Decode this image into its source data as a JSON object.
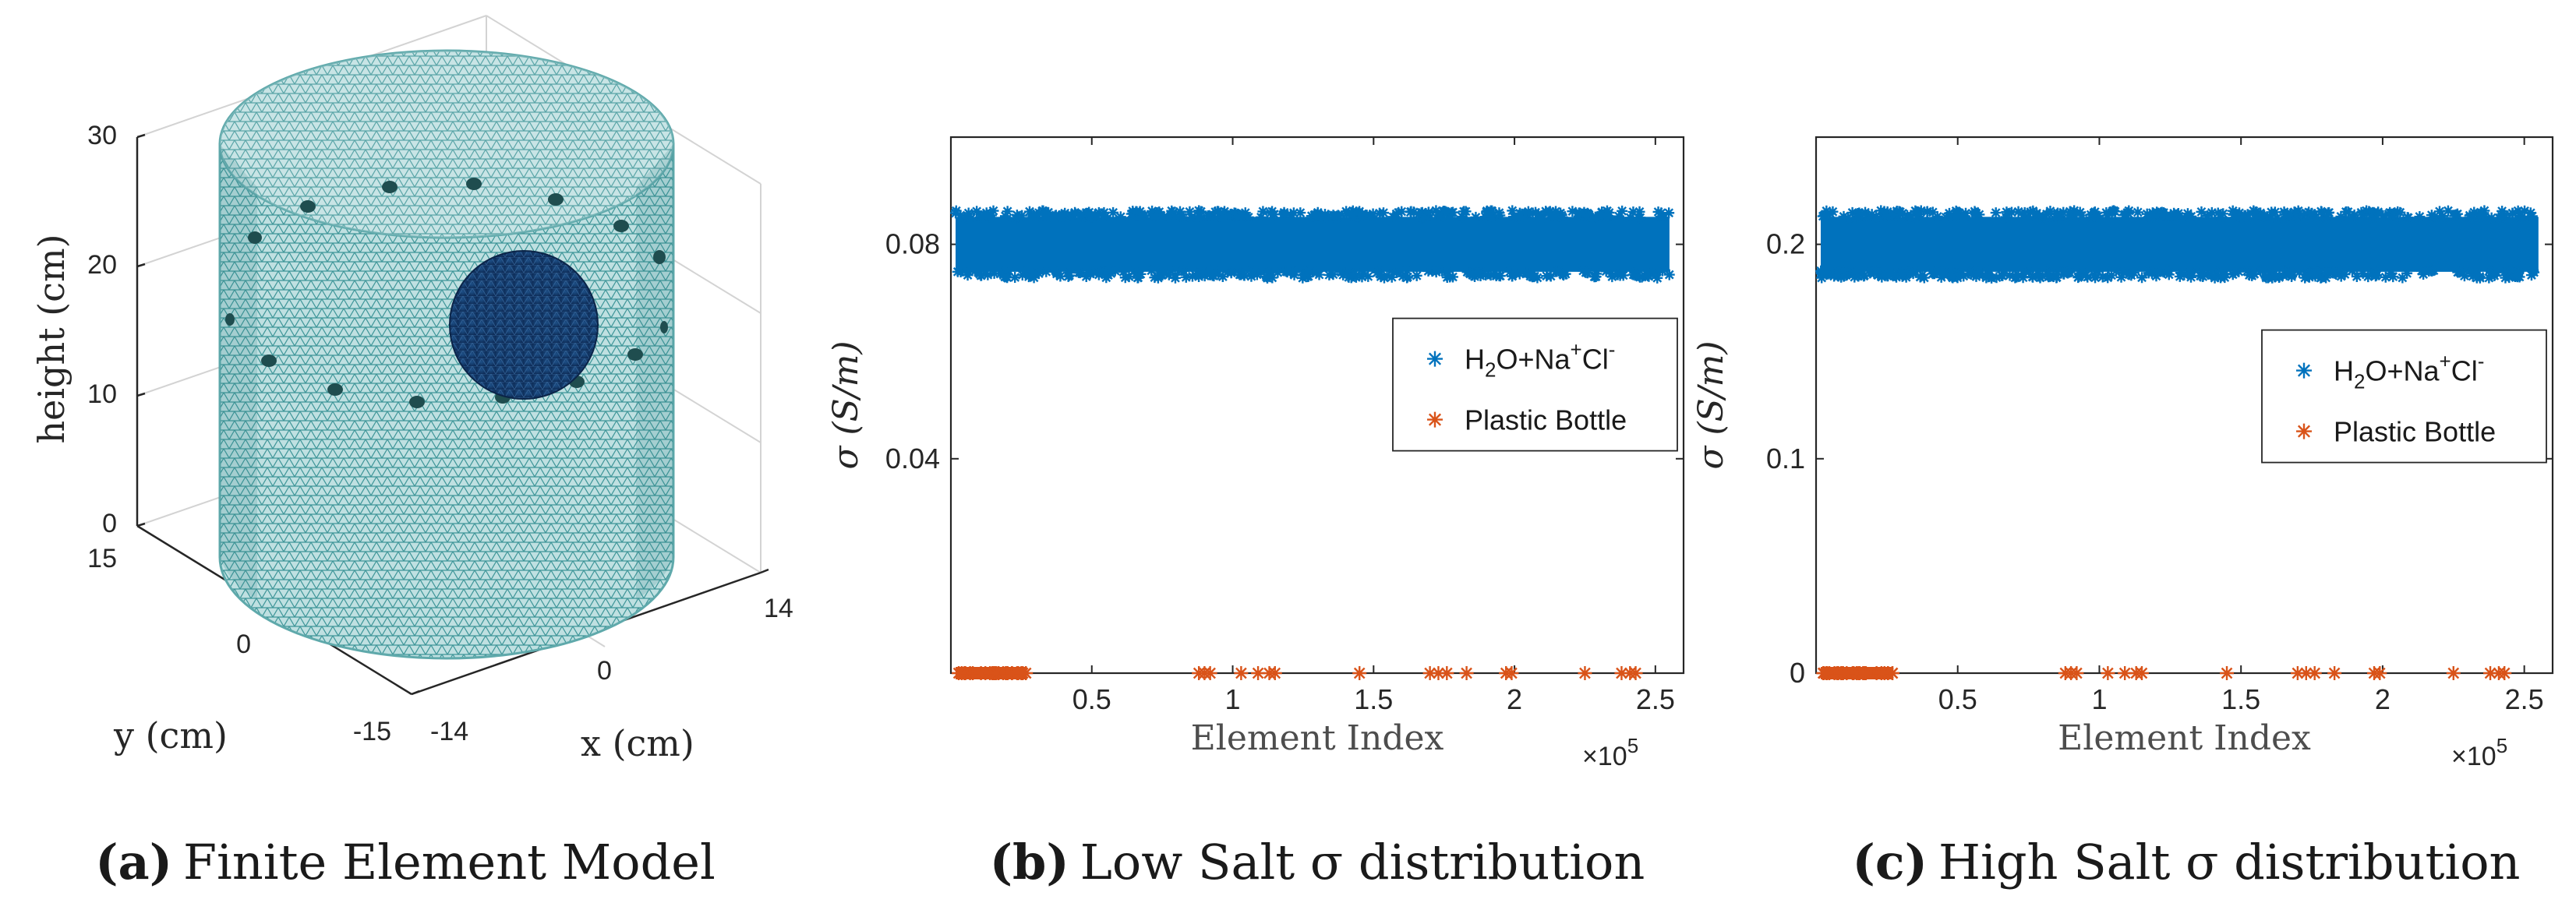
{
  "panels": [
    {
      "caption_letter": "(a)",
      "caption_text": "Finite Element Model",
      "z_label": "height (cm)",
      "y_label": "y (cm)",
      "x_label": "x (cm)",
      "z_ticks": [
        "0",
        "10",
        "20",
        "30"
      ],
      "y_ticks": [
        "15",
        "0",
        "-15"
      ],
      "x_ticks": [
        "-14",
        "0",
        "14"
      ]
    }
  ],
  "chart_data": [
    {
      "type": "scatter",
      "caption_letter": "(b)",
      "caption_text": "Low Salt σ distribution",
      "xlabel": "Element Index",
      "x_multiplier": "×10",
      "x_exponent": "5",
      "ylabel": "σ (S/m)",
      "xlim": [
        0,
        2.6
      ],
      "ylim": [
        0,
        0.1
      ],
      "x_ticks": [
        "0.5",
        "1",
        "1.5",
        "2",
        "2.5"
      ],
      "x_tick_values": [
        0.5,
        1,
        1.5,
        2,
        2.5
      ],
      "y_ticks": [
        "0.04",
        "0.08"
      ],
      "y_tick_values": [
        0.04,
        0.08
      ],
      "series": [
        {
          "name": "H2O+Na+Cl-",
          "color": "#0072bd",
          "band_center": 0.08,
          "band_halfwidth": 0.006,
          "x_range": [
            0,
            2.55
          ]
        },
        {
          "name": "Plastic Bottle",
          "color": "#d95319",
          "value": 0,
          "dense_range": [
            0,
            0.27
          ],
          "points": [
            0.88,
            0.9,
            0.92,
            1.03,
            1.09,
            1.13,
            1.15,
            1.45,
            1.7,
            1.73,
            1.76,
            1.83,
            1.97,
            1.99,
            2.25,
            2.38,
            2.41,
            2.43
          ]
        }
      ],
      "legend": {
        "location": "east",
        "entries": [
          {
            "parts": [
              {
                "t": "H",
                "s": "base"
              },
              {
                "t": "2",
                "s": "sub"
              },
              {
                "t": "O+Na",
                "s": "base"
              },
              {
                "t": "+",
                "s": "sup"
              },
              {
                "t": "Cl",
                "s": "base"
              },
              {
                "t": "-",
                "s": "sup"
              }
            ],
            "color": "#0072bd"
          },
          {
            "parts": [
              {
                "t": "Plastic Bottle",
                "s": "base"
              }
            ],
            "color": "#d95319"
          }
        ]
      }
    },
    {
      "type": "scatter",
      "caption_letter": "(c)",
      "caption_text": "High Salt σ distribution",
      "xlabel": "Element Index",
      "x_multiplier": "×10",
      "x_exponent": "5",
      "ylabel": "σ (S/m)",
      "xlim": [
        0,
        2.6
      ],
      "ylim": [
        0,
        0.25
      ],
      "x_ticks": [
        "0.5",
        "1",
        "1.5",
        "2",
        "2.5"
      ],
      "x_tick_values": [
        0.5,
        1,
        1.5,
        2,
        2.5
      ],
      "y_ticks": [
        "0",
        "0.1",
        "0.2"
      ],
      "y_tick_values": [
        0,
        0.1,
        0.2
      ],
      "series": [
        {
          "name": "H2O+Na+Cl-",
          "color": "#0072bd",
          "band_center": 0.2,
          "band_halfwidth": 0.015,
          "x_range": [
            0,
            2.55
          ]
        },
        {
          "name": "Plastic Bottle",
          "color": "#d95319",
          "value": 0,
          "dense_range": [
            0,
            0.27
          ],
          "points": [
            0.88,
            0.9,
            0.92,
            1.03,
            1.09,
            1.13,
            1.15,
            1.45,
            1.7,
            1.73,
            1.76,
            1.83,
            1.97,
            1.99,
            2.25,
            2.38,
            2.41,
            2.43
          ]
        }
      ],
      "legend": {
        "location": "east",
        "entries": [
          {
            "parts": [
              {
                "t": "H",
                "s": "base"
              },
              {
                "t": "2",
                "s": "sub"
              },
              {
                "t": "O+Na",
                "s": "base"
              },
              {
                "t": "+",
                "s": "sup"
              },
              {
                "t": "Cl",
                "s": "base"
              },
              {
                "t": "-",
                "s": "sup"
              }
            ],
            "color": "#0072bd"
          },
          {
            "parts": [
              {
                "t": "Plastic Bottle",
                "s": "base"
              }
            ],
            "color": "#d95319"
          }
        ]
      }
    }
  ]
}
